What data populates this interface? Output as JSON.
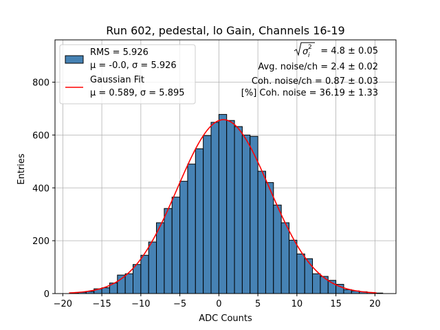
{
  "chart_data": {
    "type": "bar",
    "title": "Run 602, pedestal, lo Gain, Channels 16-19",
    "xlabel": "ADC Counts",
    "ylabel": "Entries",
    "xlim": [
      -21,
      22.7
    ],
    "ylim": [
      0,
      960
    ],
    "xticks": [
      -20,
      -15,
      -10,
      -5,
      0,
      5,
      10,
      15,
      20
    ],
    "yticks": [
      0,
      200,
      400,
      600,
      800
    ],
    "grid": true,
    "bin_width": 1,
    "bins": [
      {
        "x": -18.5,
        "y": 3
      },
      {
        "x": -17.5,
        "y": 5
      },
      {
        "x": -16.5,
        "y": 8
      },
      {
        "x": -15.5,
        "y": 18
      },
      {
        "x": -14.5,
        "y": 22
      },
      {
        "x": -13.5,
        "y": 40
      },
      {
        "x": -12.5,
        "y": 70
      },
      {
        "x": -11.5,
        "y": 75
      },
      {
        "x": -10.5,
        "y": 110
      },
      {
        "x": -9.5,
        "y": 145
      },
      {
        "x": -8.5,
        "y": 195
      },
      {
        "x": -7.5,
        "y": 268
      },
      {
        "x": -6.5,
        "y": 322
      },
      {
        "x": -5.5,
        "y": 365
      },
      {
        "x": -4.5,
        "y": 425
      },
      {
        "x": -3.5,
        "y": 490
      },
      {
        "x": -2.5,
        "y": 548
      },
      {
        "x": -1.5,
        "y": 598
      },
      {
        "x": -0.5,
        "y": 648
      },
      {
        "x": 0.5,
        "y": 678
      },
      {
        "x": 1.5,
        "y": 655
      },
      {
        "x": 2.5,
        "y": 632
      },
      {
        "x": 3.5,
        "y": 600
      },
      {
        "x": 4.5,
        "y": 595
      },
      {
        "x": 5.5,
        "y": 463
      },
      {
        "x": 6.5,
        "y": 420
      },
      {
        "x": 7.5,
        "y": 335
      },
      {
        "x": 8.5,
        "y": 268
      },
      {
        "x": 9.5,
        "y": 202
      },
      {
        "x": 10.5,
        "y": 150
      },
      {
        "x": 11.5,
        "y": 132
      },
      {
        "x": 12.5,
        "y": 75
      },
      {
        "x": 13.5,
        "y": 65
      },
      {
        "x": 14.5,
        "y": 50
      },
      {
        "x": 15.5,
        "y": 35
      },
      {
        "x": 16.5,
        "y": 15
      },
      {
        "x": 17.5,
        "y": 10
      },
      {
        "x": 18.5,
        "y": 7
      },
      {
        "x": 19.5,
        "y": 4
      },
      {
        "x": 20.5,
        "y": 2
      }
    ],
    "fit": {
      "type": "gaussian",
      "mu": 0.589,
      "sigma": 5.895,
      "amplitude": 658,
      "x_range": [
        -19.2,
        20.2
      ]
    },
    "series": [
      {
        "label": "RMS = 5.926",
        "label2": "μ = -0.0, σ = 5.926",
        "color": "#4682b4",
        "edge": "#000000"
      },
      {
        "label": "Gaussian Fit",
        "label2": "μ = 0.589, σ = 5.895",
        "color": "#ff0000"
      }
    ],
    "legend_position": "top-left",
    "annotations": {
      "line1_value": "= 4.8 ± 0.05",
      "line2": "Avg. noise/ch = 2.4 ± 0.02",
      "line3": "Coh. noise/ch = 0.87 ± 0.03",
      "line4": "[%] Coh. noise = 36.19 ± 1.33"
    }
  }
}
